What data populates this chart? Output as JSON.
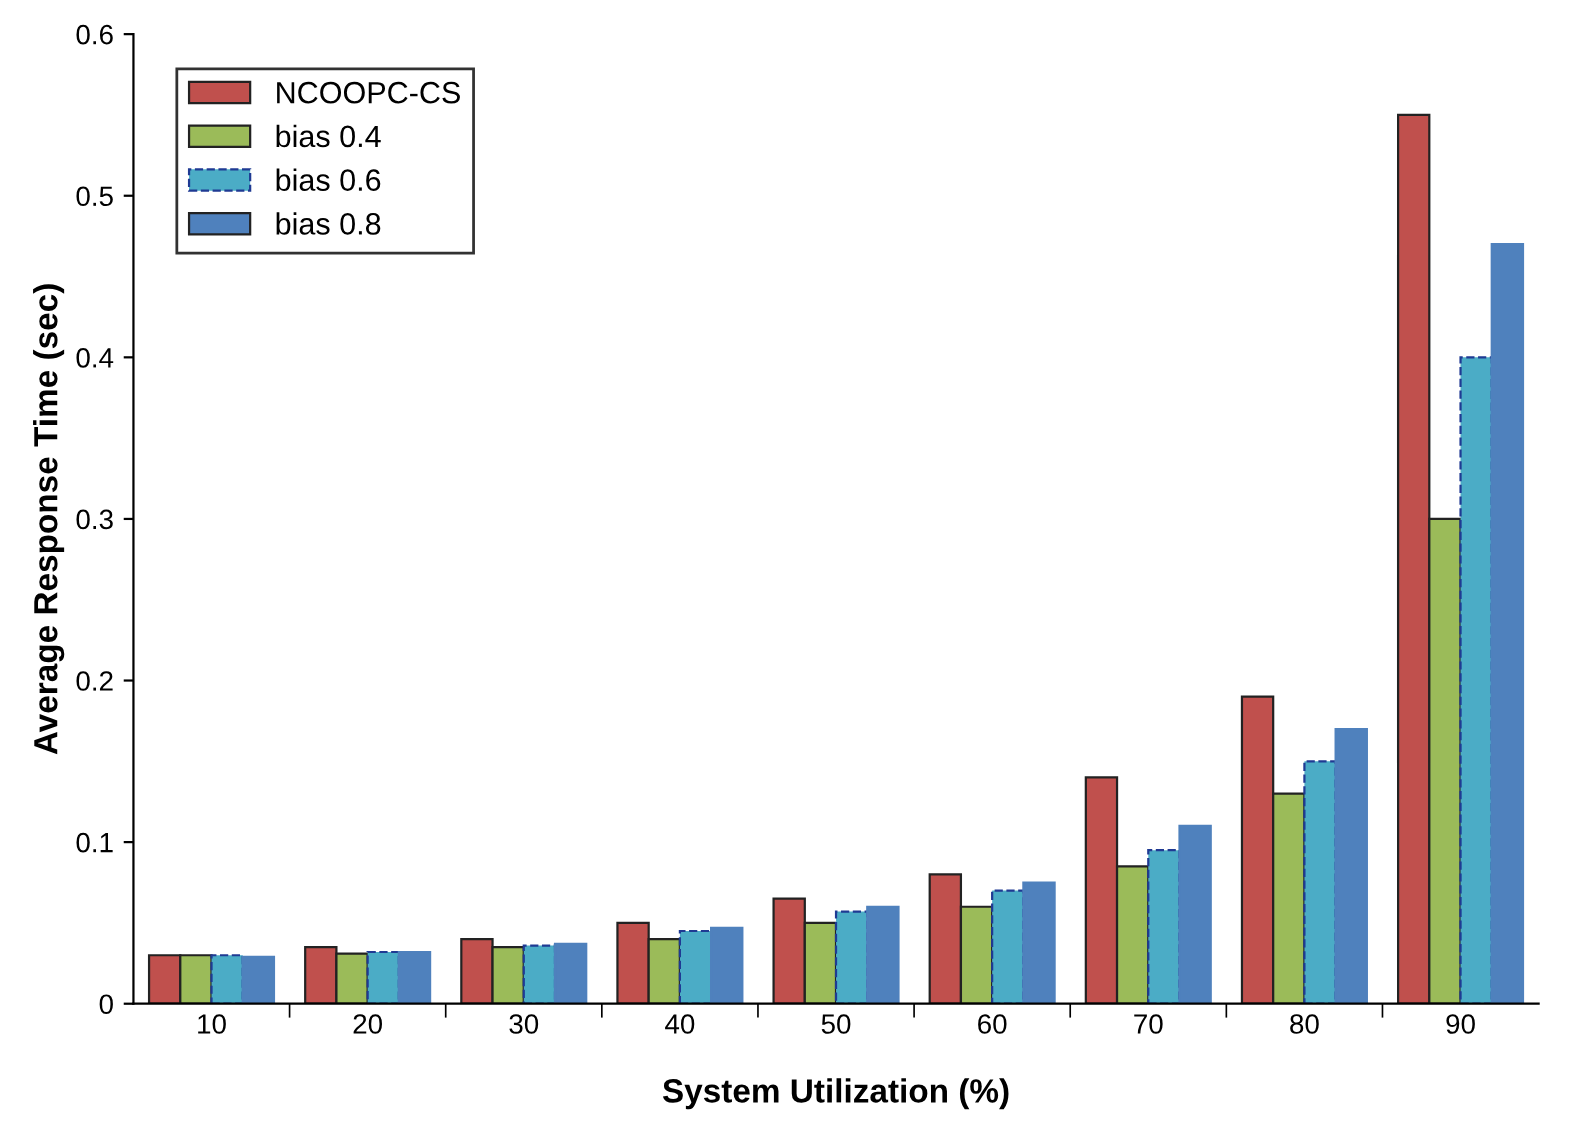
{
  "chart_data": {
    "type": "bar",
    "xlabel": "System Utilization (%)",
    "ylabel": "Average Response Time (sec)",
    "categories": [
      "10",
      "20",
      "30",
      "40",
      "50",
      "60",
      "70",
      "80",
      "90"
    ],
    "series": [
      {
        "name": "NCOOPC-CS",
        "color": "#c0504d",
        "values": [
          0.03,
          0.035,
          0.04,
          0.05,
          0.065,
          0.08,
          0.14,
          0.19,
          0.55
        ]
      },
      {
        "name": "bias 0.4",
        "color": "#9bbb59",
        "values": [
          0.03,
          0.031,
          0.035,
          0.04,
          0.05,
          0.06,
          0.085,
          0.13,
          0.3
        ]
      },
      {
        "name": "bias 0.6",
        "color": "#4bacc6",
        "line_style": "dashed",
        "values": [
          0.03,
          0.032,
          0.036,
          0.045,
          0.057,
          0.07,
          0.095,
          0.15,
          0.4
        ]
      },
      {
        "name": "bias 0.8",
        "color": "#4f81bd",
        "values": [
          0.029,
          0.032,
          0.037,
          0.047,
          0.06,
          0.075,
          0.11,
          0.17,
          0.47
        ]
      }
    ],
    "ylim": [
      0,
      0.6
    ],
    "yticks": [
      0,
      0.1,
      0.2,
      0.3,
      0.4,
      0.5,
      0.6
    ],
    "grid": false,
    "legend": "top left"
  }
}
